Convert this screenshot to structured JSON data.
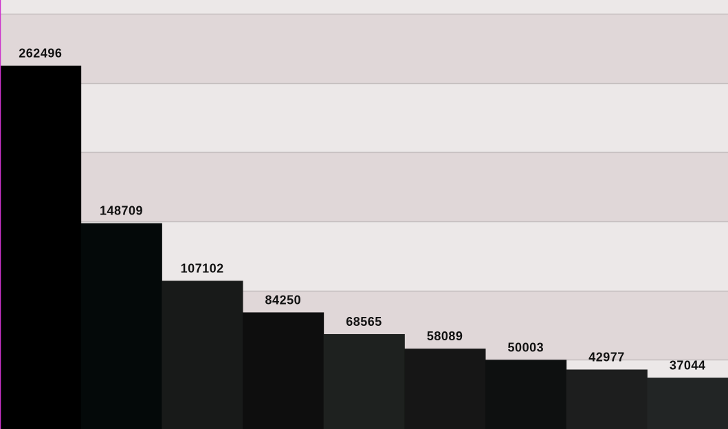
{
  "chart_data": {
    "type": "bar",
    "title": "",
    "xlabel": "",
    "ylabel": "",
    "ylim": [
      0,
      310000
    ],
    "grid": true,
    "band_colors": [
      "#ece8e8",
      "#e0d7d8"
    ],
    "axis_color": "#cc33cc",
    "values": [
      262496,
      148709,
      107102,
      84250,
      68565,
      58089,
      50003,
      42977,
      37044
    ],
    "labels": [
      "262496",
      "148709",
      "107102",
      "84250",
      "68565",
      "58089",
      "50003",
      "42977",
      "37044"
    ],
    "colors": [
      "#000000",
      "#040909",
      "#181a19",
      "#0e0e0e",
      "#1e211f",
      "#161616",
      "#0e1010",
      "#1d1e1e",
      "#222525"
    ]
  }
}
